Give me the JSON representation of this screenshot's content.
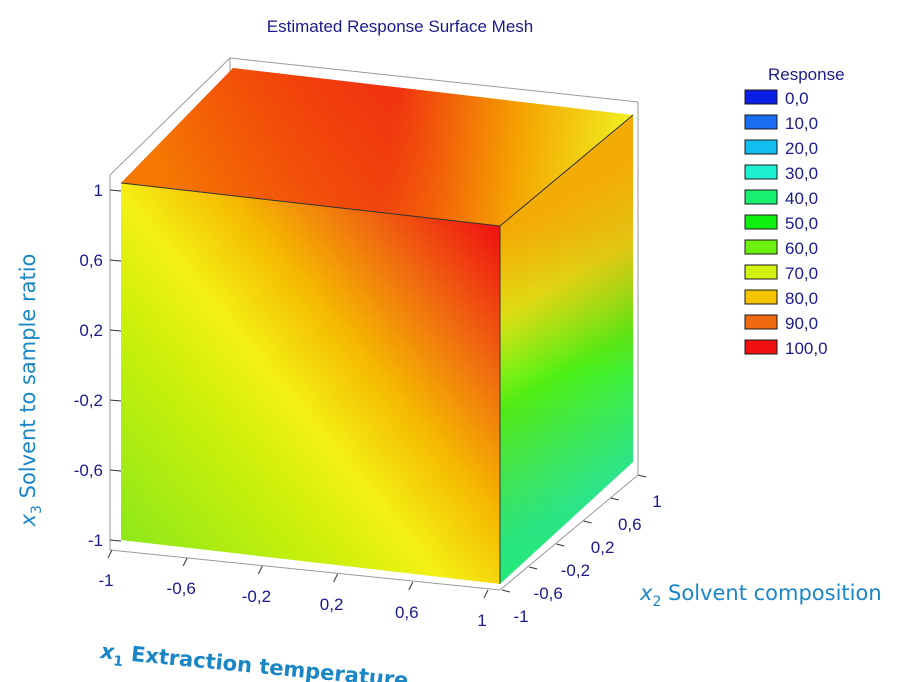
{
  "chart_data": {
    "type": "surface3d",
    "title": "Estimated Response Surface Mesh",
    "x1_axis": {
      "label_var": "x",
      "label_sub": "1",
      "label_text": " Extraction temperature",
      "ticks": [
        "-1",
        "-0,6",
        "-0,2",
        "0,2",
        "0,6",
        "1"
      ],
      "range": [
        -1,
        1
      ]
    },
    "x2_axis": {
      "label_var": "x",
      "label_sub": "2",
      "label_text": " Solvent composition",
      "ticks": [
        "-1",
        "-0,6",
        "-0,2",
        "0,2",
        "0,6",
        "1"
      ],
      "range": [
        -1,
        1
      ]
    },
    "x3_axis": {
      "label_var": "x",
      "label_sub": "3",
      "label_text": " Solvent to sample ratio",
      "ticks": [
        "-1",
        "-0,6",
        "-0,2",
        "0,2",
        "0,6",
        "1"
      ],
      "range": [
        -1,
        1
      ]
    },
    "legend": {
      "title": "Response",
      "placement": "top-right",
      "entries": [
        {
          "label": "0,0",
          "value": 0,
          "color": "#0a1ee6"
        },
        {
          "label": "10,0",
          "value": 10,
          "color": "#1a6cf0"
        },
        {
          "label": "20,0",
          "value": 20,
          "color": "#12bdf0"
        },
        {
          "label": "30,0",
          "value": 30,
          "color": "#1ef0d2"
        },
        {
          "label": "40,0",
          "value": 40,
          "color": "#18f070"
        },
        {
          "label": "50,0",
          "value": 50,
          "color": "#10f010"
        },
        {
          "label": "60,0",
          "value": 60,
          "color": "#6cf010"
        },
        {
          "label": "70,0",
          "value": 70,
          "color": "#d2f410"
        },
        {
          "label": "80,0",
          "value": 80,
          "color": "#f5c300"
        },
        {
          "label": "90,0",
          "value": 90,
          "color": "#f06a10"
        },
        {
          "label": "100,0",
          "value": 100,
          "color": "#f01010"
        }
      ]
    }
  }
}
